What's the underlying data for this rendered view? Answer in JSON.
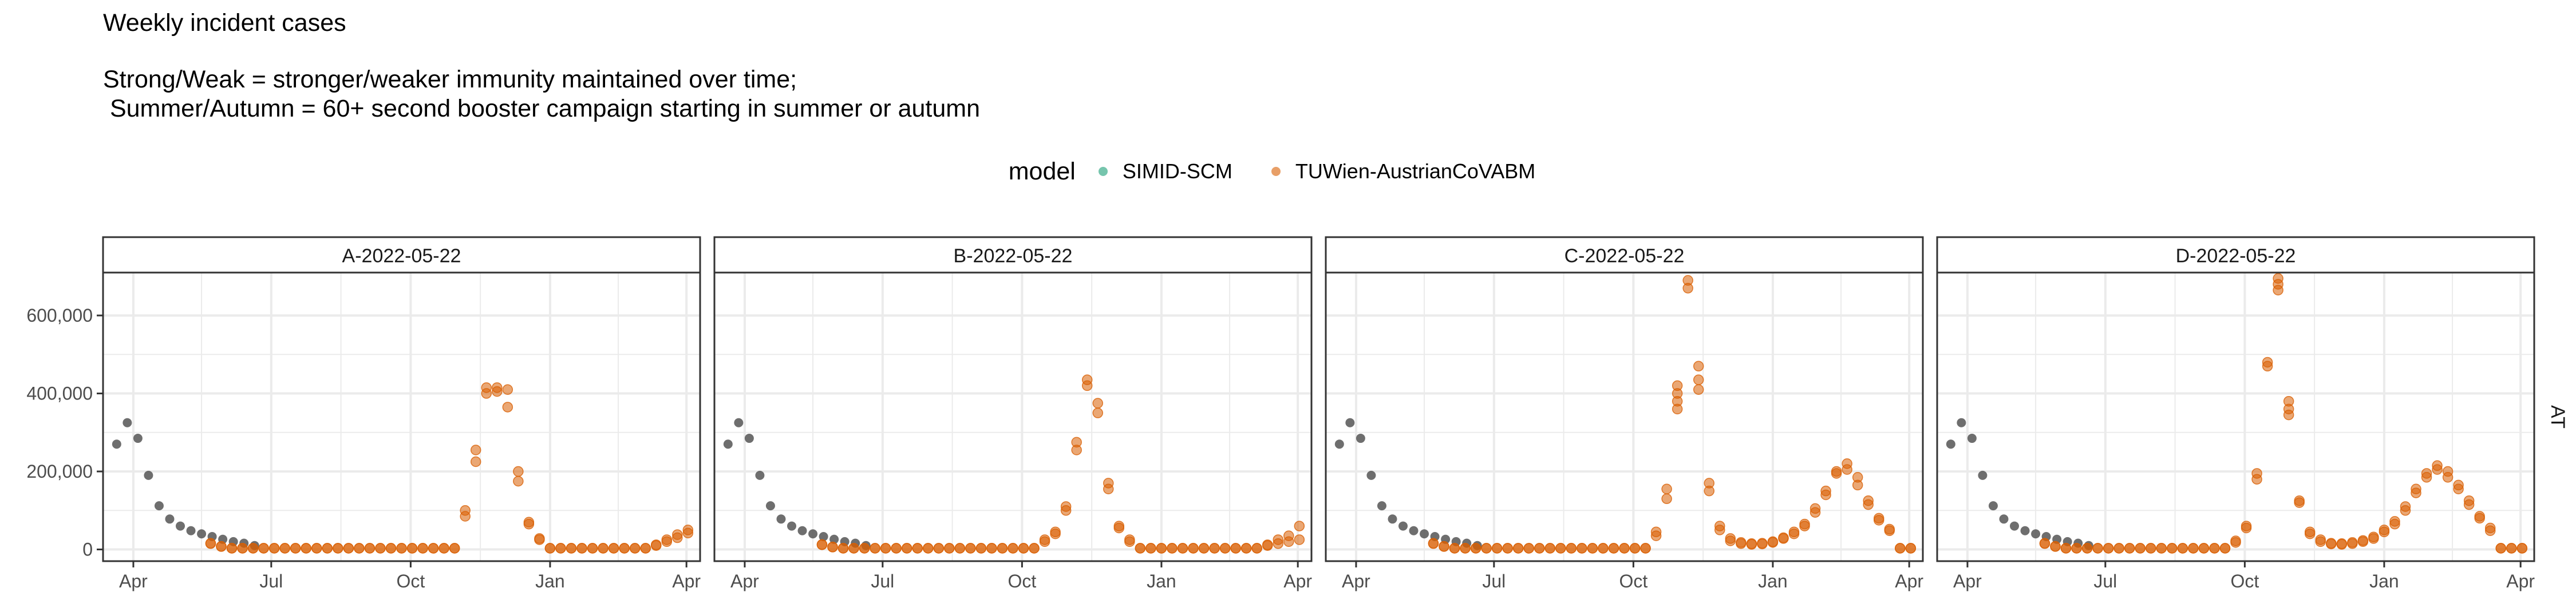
{
  "titles": {
    "main": "Weekly incident cases",
    "line1": "Strong/Weak = stronger/weaker immunity maintained over time;",
    "line2": " Summer/Autumn = 60+ second booster campaign starting in summer or autumn"
  },
  "legend": {
    "title": "model",
    "items": [
      {
        "label": "SIMID-SCM",
        "color": "#1b9e77"
      },
      {
        "label": "TUWien-AustrianCoVABM",
        "color": "#d95f02"
      }
    ]
  },
  "chart_data": {
    "type": "scatter",
    "facet_row_label": "AT",
    "x_axis": {
      "range": [
        "2022-03-12",
        "2023-04-10"
      ],
      "ticks": [
        "Apr",
        "Jul",
        "Oct",
        "Jan",
        "Apr"
      ],
      "tick_dates": [
        "2022-04-01",
        "2022-07-01",
        "2022-10-01",
        "2023-01-01",
        "2023-04-01"
      ]
    },
    "y_axis": {
      "range": [
        -30000,
        710000
      ],
      "ticks": [
        "0",
        "200,000",
        "400,000",
        "600,000"
      ],
      "tick_values": [
        0,
        200000,
        400000,
        600000
      ]
    },
    "grid": true,
    "colors": {
      "observed": "#555555",
      "model": "#d95f02",
      "panel_bg": "#ffffff",
      "grid": "#ebebeb"
    },
    "observed": {
      "dates": [
        "2022-03-21",
        "2022-03-28",
        "2022-04-04",
        "2022-04-11",
        "2022-04-18",
        "2022-04-25",
        "2022-05-02",
        "2022-05-09",
        "2022-05-16",
        "2022-05-23",
        "2022-05-30",
        "2022-06-06",
        "2022-06-13",
        "2022-06-20"
      ],
      "values": [
        270000,
        325000,
        285000,
        190000,
        112000,
        78000,
        60000,
        48000,
        40000,
        33000,
        26000,
        20000,
        16000,
        10000
      ]
    },
    "panels": [
      {
        "label": "A-2022-05-22",
        "model": "TUWien-AustrianCoVABM",
        "baseline": 3000,
        "late_start_value": 15000,
        "peaks": [
          {
            "date": "2022-11-06",
            "values": [
              85000,
              100000
            ]
          },
          {
            "date": "2022-11-13",
            "values": [
              225000,
              255000
            ]
          },
          {
            "date": "2022-11-20",
            "values": [
              400000,
              415000
            ]
          },
          {
            "date": "2022-11-27",
            "values": [
              405000,
              415000
            ]
          },
          {
            "date": "2022-12-04",
            "values": [
              365000,
              410000
            ]
          },
          {
            "date": "2022-12-11",
            "values": [
              175000,
              200000
            ]
          },
          {
            "date": "2022-12-18",
            "values": [
              65000,
              70000
            ]
          },
          {
            "date": "2022-12-25",
            "values": [
              25000,
              28000
            ]
          }
        ],
        "tail": [
          {
            "date": "2023-03-12",
            "values": [
              10000,
              12000
            ]
          },
          {
            "date": "2023-03-19",
            "values": [
              20000,
              25000
            ]
          },
          {
            "date": "2023-03-26",
            "values": [
              30000,
              38000
            ]
          },
          {
            "date": "2023-04-02",
            "values": [
              42000,
              50000
            ]
          }
        ]
      },
      {
        "label": "B-2022-05-22",
        "model": "TUWien-AustrianCoVABM",
        "baseline": 3000,
        "late_start_value": 12000,
        "peaks": [
          {
            "date": "2022-10-16",
            "values": [
              20000,
              25000
            ]
          },
          {
            "date": "2022-10-23",
            "values": [
              40000,
              45000
            ]
          },
          {
            "date": "2022-10-30",
            "values": [
              100000,
              110000
            ]
          },
          {
            "date": "2022-11-06",
            "values": [
              255000,
              275000
            ]
          },
          {
            "date": "2022-11-13",
            "values": [
              420000,
              435000
            ]
          },
          {
            "date": "2022-11-20",
            "values": [
              350000,
              375000
            ]
          },
          {
            "date": "2022-11-27",
            "values": [
              155000,
              170000
            ]
          },
          {
            "date": "2022-12-04",
            "values": [
              55000,
              60000
            ]
          },
          {
            "date": "2022-12-11",
            "values": [
              20000,
              25000
            ]
          }
        ],
        "tail": [
          {
            "date": "2023-03-12",
            "values": [
              10000,
              12000
            ]
          },
          {
            "date": "2023-03-19",
            "values": [
              15000,
              25000
            ]
          },
          {
            "date": "2023-03-26",
            "values": [
              20000,
              35000
            ]
          },
          {
            "date": "2023-04-02",
            "values": [
              25000,
              60000
            ]
          }
        ]
      },
      {
        "label": "C-2022-05-22",
        "model": "TUWien-AustrianCoVABM",
        "baseline": 3000,
        "late_start_value": 15000,
        "peaks": [
          {
            "date": "2022-10-16",
            "values": [
              35000,
              45000
            ]
          },
          {
            "date": "2022-10-23",
            "values": [
              130000,
              155000
            ]
          },
          {
            "date": "2022-10-30",
            "values": [
              360000,
              380000,
              400000,
              420000
            ]
          },
          {
            "date": "2022-11-06",
            "values": [
              670000,
              690000
            ]
          },
          {
            "date": "2022-11-13",
            "values": [
              410000,
              435000,
              470000
            ]
          },
          {
            "date": "2022-11-20",
            "values": [
              150000,
              170000
            ]
          },
          {
            "date": "2022-11-27",
            "values": [
              50000,
              60000
            ]
          },
          {
            "date": "2022-12-04",
            "values": [
              22000,
              28000
            ]
          },
          {
            "date": "2022-12-11",
            "values": [
              15000,
              18000
            ]
          },
          {
            "date": "2022-12-18",
            "values": [
              13000,
              15000
            ]
          },
          {
            "date": "2022-12-25",
            "values": [
              14000,
              16000
            ]
          },
          {
            "date": "2023-01-01",
            "values": [
              18000,
              20000
            ]
          },
          {
            "date": "2023-01-08",
            "values": [
              28000,
              30000
            ]
          },
          {
            "date": "2023-01-15",
            "values": [
              40000,
              45000
            ]
          },
          {
            "date": "2023-01-22",
            "values": [
              60000,
              65000
            ]
          },
          {
            "date": "2023-01-29",
            "values": [
              95000,
              105000
            ]
          },
          {
            "date": "2023-02-05",
            "values": [
              140000,
              150000
            ]
          },
          {
            "date": "2023-02-12",
            "values": [
              195000,
              200000
            ]
          },
          {
            "date": "2023-02-19",
            "values": [
              205000,
              220000
            ]
          },
          {
            "date": "2023-02-26",
            "values": [
              165000,
              185000
            ]
          },
          {
            "date": "2023-03-05",
            "values": [
              115000,
              125000
            ]
          },
          {
            "date": "2023-03-12",
            "values": [
              75000,
              80000
            ]
          },
          {
            "date": "2023-03-19",
            "values": [
              48000,
              52000
            ]
          }
        ],
        "tail": []
      },
      {
        "label": "D-2022-05-22",
        "model": "TUWien-AustrianCoVABM",
        "baseline": 3000,
        "late_start_value": 15000,
        "peaks": [
          {
            "date": "2022-09-25",
            "values": [
              18000,
              22000
            ]
          },
          {
            "date": "2022-10-02",
            "values": [
              55000,
              60000
            ]
          },
          {
            "date": "2022-10-09",
            "values": [
              180000,
              195000
            ]
          },
          {
            "date": "2022-10-16",
            "values": [
              470000,
              480000
            ]
          },
          {
            "date": "2022-10-23",
            "values": [
              665000,
              680000,
              695000
            ]
          },
          {
            "date": "2022-10-30",
            "values": [
              345000,
              360000,
              380000
            ]
          },
          {
            "date": "2022-11-06",
            "values": [
              120000,
              125000
            ]
          },
          {
            "date": "2022-11-13",
            "values": [
              40000,
              45000
            ]
          },
          {
            "date": "2022-11-20",
            "values": [
              20000,
              25000
            ]
          },
          {
            "date": "2022-11-27",
            "values": [
              14000,
              16000
            ]
          },
          {
            "date": "2022-12-04",
            "values": [
              13000,
              15000
            ]
          },
          {
            "date": "2022-12-11",
            "values": [
              15000,
              18000
            ]
          },
          {
            "date": "2022-12-18",
            "values": [
              20000,
              23000
            ]
          },
          {
            "date": "2022-12-25",
            "values": [
              28000,
              32000
            ]
          },
          {
            "date": "2023-01-01",
            "values": [
              45000,
              50000
            ]
          },
          {
            "date": "2023-01-08",
            "values": [
              65000,
              72000
            ]
          },
          {
            "date": "2023-01-15",
            "values": [
              100000,
              110000
            ]
          },
          {
            "date": "2023-01-22",
            "values": [
              145000,
              155000
            ]
          },
          {
            "date": "2023-01-29",
            "values": [
              185000,
              195000
            ]
          },
          {
            "date": "2023-02-05",
            "values": [
              205000,
              215000
            ]
          },
          {
            "date": "2023-02-12",
            "values": [
              185000,
              200000
            ]
          },
          {
            "date": "2023-02-19",
            "values": [
              155000,
              165000
            ]
          },
          {
            "date": "2023-02-26",
            "values": [
              115000,
              125000
            ]
          },
          {
            "date": "2023-03-05",
            "values": [
              80000,
              85000
            ]
          },
          {
            "date": "2023-03-12",
            "values": [
              48000,
              55000
            ]
          }
        ],
        "tail": []
      }
    ]
  }
}
